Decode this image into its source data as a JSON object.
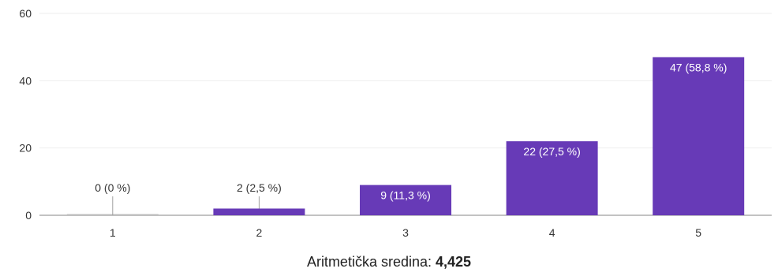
{
  "chart_data": {
    "type": "bar",
    "categories": [
      "1",
      "2",
      "3",
      "4",
      "5"
    ],
    "values": [
      0,
      2,
      9,
      22,
      47
    ],
    "data_labels": [
      "0 (0 %)",
      "2 (2,5 %)",
      "9 (11,3 %)",
      "22 (27,5 %)",
      "47 (58,8 %)"
    ],
    "y_ticks": [
      "0",
      "20",
      "40",
      "60"
    ],
    "ylim": [
      0,
      60
    ],
    "grid": true,
    "bar_color": "#673ab7",
    "title": "",
    "xlabel": "",
    "ylabel": ""
  },
  "summary": {
    "label": "Aritmetička sredina: ",
    "value": "4,425"
  }
}
